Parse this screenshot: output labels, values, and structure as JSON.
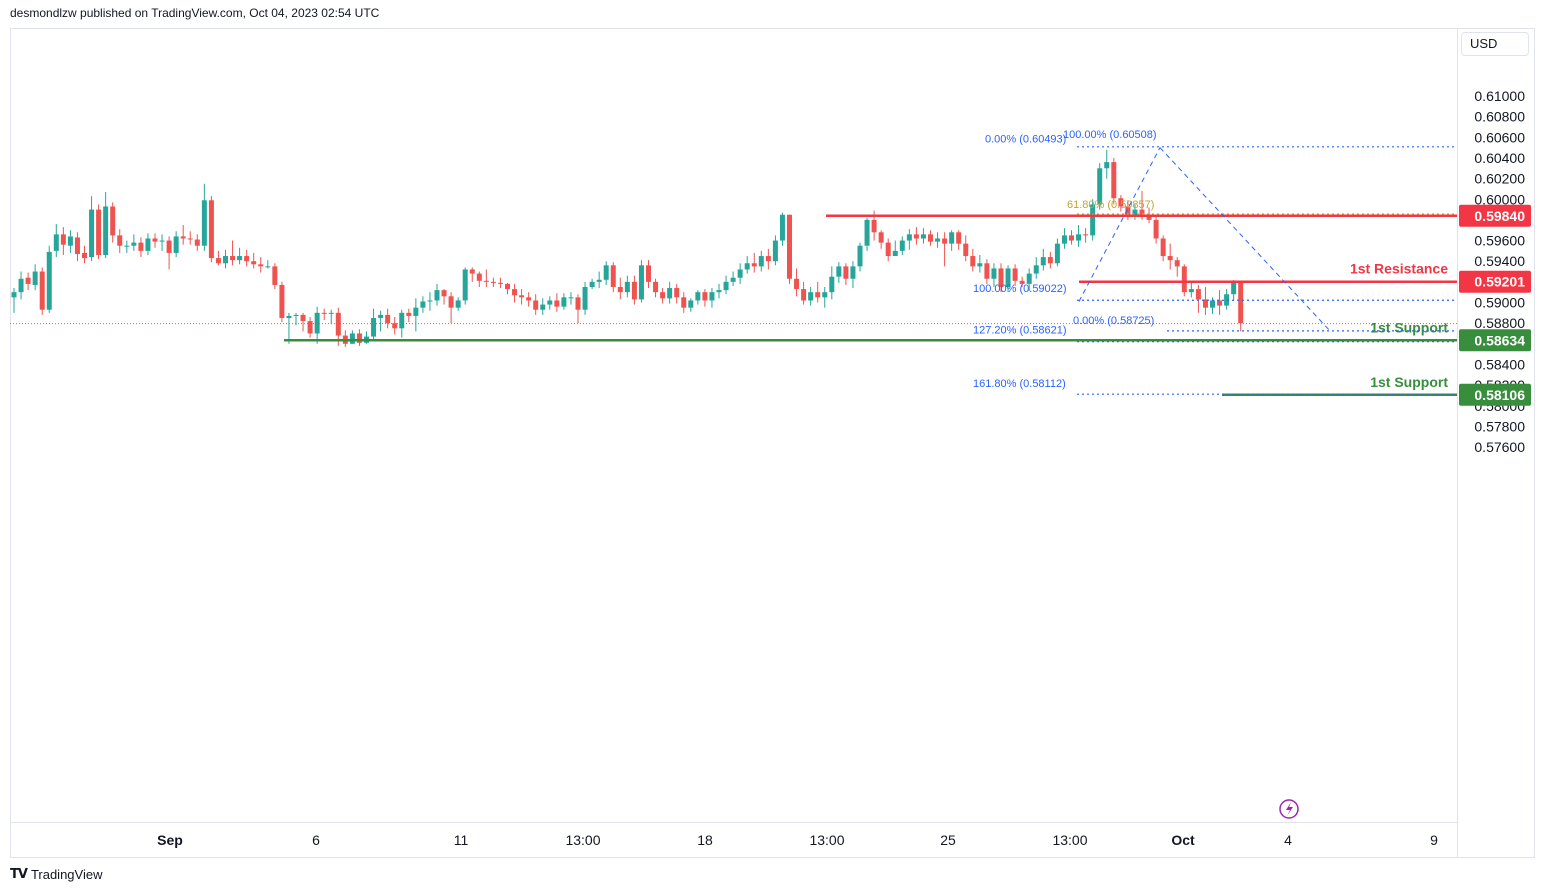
{
  "header": {
    "published": "desmondlzw published on TradingView.com, Oct 04, 2023 02:54 UTC"
  },
  "currency_button": "USD",
  "footer": {
    "brand": "TradingView"
  },
  "colors": {
    "up": "#26a69a",
    "down": "#ef5350",
    "resistance": "#f23645",
    "support": "#388e3c",
    "fib": "#2962ff",
    "fib_gold": "#c9a227"
  },
  "chart_data": {
    "type": "candlestick",
    "y_axis": {
      "ticks": [
        0.61,
        0.608,
        0.606,
        0.604,
        0.602,
        0.6,
        0.598,
        0.596,
        0.594,
        0.592,
        0.59,
        0.588,
        0.586,
        0.584,
        0.582,
        0.58,
        0.578,
        0.576
      ],
      "tick_labels": [
        "0.61000",
        "0.60800",
        "0.60600",
        "0.60400",
        "0.60200",
        "0.60000",
        "0.59800",
        "0.59600",
        "0.59400",
        "0.59200",
        "0.59000",
        "0.58800",
        "",
        "0.58400",
        "0.58200",
        "0.58000",
        "0.57800",
        "0.57600"
      ],
      "range": [
        0.5738,
        0.6128
      ]
    },
    "x_axis": {
      "tick_labels": [
        "Sep",
        "6",
        "11",
        "13:00",
        "18",
        "13:00",
        "25",
        "13:00",
        "Oct",
        "4",
        "9"
      ]
    },
    "price_labels": [
      {
        "value": "0.59840",
        "type": "resistance"
      },
      {
        "value": "0.59201",
        "type": "resistance"
      },
      {
        "value": "0.58634",
        "type": "support"
      },
      {
        "value": "0.58106",
        "type": "support"
      }
    ],
    "levels": [
      {
        "name": "resistance-1",
        "price": 0.5984,
        "label": ""
      },
      {
        "name": "resistance-2",
        "price": 0.59201,
        "label": "1st Resistance"
      },
      {
        "name": "support-1",
        "price": 0.58634,
        "label": "1st Support"
      },
      {
        "name": "support-2",
        "price": 0.58106,
        "label": "1st Support"
      }
    ],
    "fib_labels": [
      {
        "text": "0.00% (0.60493)",
        "price": 0.60493
      },
      {
        "text": "100.00% (0.60508)",
        "price": 0.60508
      },
      {
        "text": "61.80% (0.59857)",
        "price": 0.59857,
        "gold": true
      },
      {
        "text": "100.00% (0.59022)",
        "price": 0.59022
      },
      {
        "text": "0.00% (0.58725)",
        "price": 0.58725
      },
      {
        "text": "127.20% (0.58621)",
        "price": 0.58621
      },
      {
        "text": "161.80% (0.58112)",
        "price": 0.58112
      }
    ],
    "current_price": 0.58795,
    "candles": [
      [
        0.5905,
        0.591,
        0.589,
        0.5914
      ],
      [
        0.591,
        0.5923,
        0.5903,
        0.593
      ],
      [
        0.5924,
        0.5918,
        0.5912,
        0.5929
      ],
      [
        0.5917,
        0.593,
        0.5912,
        0.5937
      ],
      [
        0.593,
        0.5893,
        0.5888,
        0.5934
      ],
      [
        0.5893,
        0.5949,
        0.589,
        0.5955
      ],
      [
        0.595,
        0.5966,
        0.5944,
        0.5976
      ],
      [
        0.5966,
        0.5956,
        0.5946,
        0.5973
      ],
      [
        0.5955,
        0.5964,
        0.5948,
        0.597
      ],
      [
        0.5963,
        0.5947,
        0.594,
        0.5968
      ],
      [
        0.5948,
        0.5943,
        0.5938,
        0.5955
      ],
      [
        0.5944,
        0.599,
        0.594,
        0.6003
      ],
      [
        0.599,
        0.5946,
        0.5942,
        0.5995
      ],
      [
        0.5946,
        0.5993,
        0.5943,
        0.6007
      ],
      [
        0.5993,
        0.5965,
        0.5958,
        0.5997
      ],
      [
        0.5965,
        0.5955,
        0.5948,
        0.5971
      ],
      [
        0.5955,
        0.5955,
        0.5948,
        0.596
      ],
      [
        0.5955,
        0.5958,
        0.595,
        0.5966
      ],
      [
        0.5958,
        0.595,
        0.5944,
        0.5963
      ],
      [
        0.595,
        0.5962,
        0.5946,
        0.5967
      ],
      [
        0.5962,
        0.5959,
        0.5953,
        0.5967
      ],
      [
        0.5959,
        0.596,
        0.595,
        0.5966
      ],
      [
        0.596,
        0.5948,
        0.5932,
        0.5964
      ],
      [
        0.5948,
        0.5964,
        0.5944,
        0.5969
      ],
      [
        0.5964,
        0.5962,
        0.5956,
        0.5975
      ],
      [
        0.5962,
        0.5961,
        0.5956,
        0.5969
      ],
      [
        0.5961,
        0.5955,
        0.595,
        0.5966
      ],
      [
        0.5955,
        0.5999,
        0.595,
        0.6015
      ],
      [
        0.5999,
        0.5943,
        0.5939,
        0.6003
      ],
      [
        0.5943,
        0.5938,
        0.5936,
        0.595
      ],
      [
        0.5938,
        0.5945,
        0.5933,
        0.5951
      ],
      [
        0.5945,
        0.5941,
        0.5936,
        0.596
      ],
      [
        0.5941,
        0.5945,
        0.5937,
        0.5953
      ],
      [
        0.5945,
        0.594,
        0.5935,
        0.5951
      ],
      [
        0.594,
        0.5937,
        0.5933,
        0.5948
      ],
      [
        0.5937,
        0.5935,
        0.5929,
        0.5944
      ],
      [
        0.5935,
        0.5935,
        0.5933,
        0.5941
      ],
      [
        0.5935,
        0.5917,
        0.5913,
        0.5938
      ],
      [
        0.5917,
        0.5885,
        0.5881,
        0.592
      ],
      [
        0.5885,
        0.5887,
        0.586,
        0.589
      ],
      [
        0.5887,
        0.5888,
        0.5878,
        0.589
      ],
      [
        0.5888,
        0.5882,
        0.5872,
        0.589
      ],
      [
        0.5882,
        0.587,
        0.5866,
        0.5886
      ],
      [
        0.587,
        0.589,
        0.586,
        0.5896
      ],
      [
        0.589,
        0.5889,
        0.5883,
        0.5894
      ],
      [
        0.5889,
        0.589,
        0.5879,
        0.5893
      ],
      [
        0.589,
        0.5868,
        0.5858,
        0.5895
      ],
      [
        0.5868,
        0.586,
        0.5857,
        0.5873
      ],
      [
        0.586,
        0.587,
        0.586,
        0.5873
      ],
      [
        0.587,
        0.5861,
        0.5858,
        0.5874
      ],
      [
        0.5861,
        0.5867,
        0.586,
        0.5872
      ],
      [
        0.5867,
        0.5885,
        0.5863,
        0.5894
      ],
      [
        0.5885,
        0.5888,
        0.5872,
        0.5892
      ],
      [
        0.5888,
        0.588,
        0.5875,
        0.5894
      ],
      [
        0.588,
        0.5875,
        0.5869,
        0.5886
      ],
      [
        0.5875,
        0.589,
        0.5866,
        0.5893
      ],
      [
        0.589,
        0.5887,
        0.5881,
        0.5894
      ],
      [
        0.5887,
        0.5895,
        0.5872,
        0.5904
      ],
      [
        0.5895,
        0.5901,
        0.589,
        0.5906
      ],
      [
        0.5901,
        0.5902,
        0.5892,
        0.591
      ],
      [
        0.5902,
        0.5912,
        0.5897,
        0.5918
      ],
      [
        0.5912,
        0.5906,
        0.5898,
        0.5913
      ],
      [
        0.5906,
        0.5895,
        0.588,
        0.591
      ],
      [
        0.5895,
        0.5902,
        0.5892,
        0.5905
      ],
      [
        0.5902,
        0.5932,
        0.5898,
        0.5934
      ],
      [
        0.5932,
        0.5928,
        0.592,
        0.5934
      ],
      [
        0.5928,
        0.5921,
        0.5915,
        0.593
      ],
      [
        0.5921,
        0.592,
        0.5915,
        0.5932
      ],
      [
        0.592,
        0.5919,
        0.5915,
        0.5924
      ],
      [
        0.5919,
        0.5918,
        0.5914,
        0.5924
      ],
      [
        0.5918,
        0.5913,
        0.5908,
        0.5919
      ],
      [
        0.5913,
        0.5907,
        0.59,
        0.5918
      ],
      [
        0.5907,
        0.5905,
        0.5898,
        0.5913
      ],
      [
        0.5905,
        0.5902,
        0.5896,
        0.591
      ],
      [
        0.5902,
        0.5893,
        0.5888,
        0.5908
      ],
      [
        0.5893,
        0.5898,
        0.5888,
        0.5904
      ],
      [
        0.5898,
        0.5902,
        0.5893,
        0.5906
      ],
      [
        0.5902,
        0.5896,
        0.5891,
        0.5909
      ],
      [
        0.5896,
        0.5905,
        0.5893,
        0.5909
      ],
      [
        0.5905,
        0.5905,
        0.5898,
        0.591
      ],
      [
        0.5905,
        0.5893,
        0.588,
        0.5908
      ],
      [
        0.5893,
        0.5915,
        0.5888,
        0.592
      ],
      [
        0.5915,
        0.592,
        0.5913,
        0.5923
      ],
      [
        0.592,
        0.5922,
        0.5914,
        0.593
      ],
      [
        0.5922,
        0.5936,
        0.5917,
        0.594
      ],
      [
        0.5936,
        0.5915,
        0.591,
        0.5939
      ],
      [
        0.5915,
        0.591,
        0.5903,
        0.5924
      ],
      [
        0.591,
        0.592,
        0.5905,
        0.5926
      ],
      [
        0.592,
        0.5903,
        0.5898,
        0.5926
      ],
      [
        0.5903,
        0.5936,
        0.59,
        0.5941
      ],
      [
        0.5936,
        0.592,
        0.5914,
        0.5941
      ],
      [
        0.592,
        0.591,
        0.5905,
        0.5923
      ],
      [
        0.591,
        0.5904,
        0.5899,
        0.5914
      ],
      [
        0.5904,
        0.5914,
        0.5899,
        0.592
      ],
      [
        0.5914,
        0.5905,
        0.5899,
        0.5918
      ],
      [
        0.5905,
        0.5895,
        0.589,
        0.591
      ],
      [
        0.5895,
        0.5902,
        0.5891,
        0.5904
      ],
      [
        0.5902,
        0.591,
        0.5898,
        0.5912
      ],
      [
        0.591,
        0.5902,
        0.5896,
        0.5913
      ],
      [
        0.5902,
        0.591,
        0.5895,
        0.5914
      ],
      [
        0.591,
        0.5912,
        0.5904,
        0.5918
      ],
      [
        0.5912,
        0.592,
        0.5908,
        0.5926
      ],
      [
        0.592,
        0.5924,
        0.5916,
        0.593
      ],
      [
        0.5924,
        0.5932,
        0.5918,
        0.5938
      ],
      [
        0.5932,
        0.5938,
        0.5928,
        0.5945
      ],
      [
        0.5938,
        0.5935,
        0.5929,
        0.5948
      ],
      [
        0.5935,
        0.5945,
        0.593,
        0.595
      ],
      [
        0.5945,
        0.594,
        0.5932,
        0.5952
      ],
      [
        0.594,
        0.596,
        0.5936,
        0.5965
      ],
      [
        0.596,
        0.5985,
        0.5955,
        0.5987
      ],
      [
        0.5985,
        0.5923,
        0.5918,
        0.5985
      ],
      [
        0.5923,
        0.5913,
        0.5906,
        0.5933
      ],
      [
        0.5913,
        0.5902,
        0.5898,
        0.592
      ],
      [
        0.5902,
        0.591,
        0.5897,
        0.5915
      ],
      [
        0.591,
        0.5905,
        0.59,
        0.592
      ],
      [
        0.5905,
        0.591,
        0.5895,
        0.5915
      ],
      [
        0.591,
        0.5925,
        0.5903,
        0.5935
      ],
      [
        0.5925,
        0.5935,
        0.5919,
        0.5939
      ],
      [
        0.5935,
        0.5923,
        0.5917,
        0.5938
      ],
      [
        0.5923,
        0.5935,
        0.5914,
        0.594
      ],
      [
        0.5935,
        0.5955,
        0.593,
        0.5958
      ],
      [
        0.5955,
        0.598,
        0.595,
        0.5982
      ],
      [
        0.598,
        0.5968,
        0.596,
        0.5989
      ],
      [
        0.5968,
        0.5958,
        0.5952,
        0.597
      ],
      [
        0.5958,
        0.5945,
        0.594,
        0.5962
      ],
      [
        0.5945,
        0.595,
        0.5945,
        0.596
      ],
      [
        0.595,
        0.596,
        0.5946,
        0.5964
      ],
      [
        0.596,
        0.5966,
        0.5951,
        0.5971
      ],
      [
        0.5966,
        0.5962,
        0.5956,
        0.5973
      ],
      [
        0.5962,
        0.5966,
        0.5957,
        0.5972
      ],
      [
        0.5966,
        0.5959,
        0.5955,
        0.597
      ],
      [
        0.5959,
        0.5962,
        0.5953,
        0.5968
      ],
      [
        0.5962,
        0.5957,
        0.5935,
        0.5968
      ],
      [
        0.5957,
        0.5968,
        0.595,
        0.597
      ],
      [
        0.5968,
        0.5957,
        0.5951,
        0.597
      ],
      [
        0.5957,
        0.5945,
        0.594,
        0.5965
      ],
      [
        0.5945,
        0.5935,
        0.593,
        0.5952
      ],
      [
        0.5935,
        0.5938,
        0.5929,
        0.5946
      ],
      [
        0.5938,
        0.5923,
        0.5918,
        0.5942
      ],
      [
        0.5923,
        0.5933,
        0.5915,
        0.5938
      ],
      [
        0.5933,
        0.5915,
        0.591,
        0.5938
      ],
      [
        0.5915,
        0.5933,
        0.591,
        0.5936
      ],
      [
        0.5933,
        0.5921,
        0.5916,
        0.5937
      ],
      [
        0.5921,
        0.5918,
        0.5915,
        0.5925
      ],
      [
        0.5918,
        0.5928,
        0.5911,
        0.5933
      ],
      [
        0.5928,
        0.5936,
        0.5923,
        0.5944
      ],
      [
        0.5936,
        0.5944,
        0.5931,
        0.5952
      ],
      [
        0.5944,
        0.5938,
        0.5933,
        0.5949
      ],
      [
        0.5938,
        0.5957,
        0.5935,
        0.5962
      ],
      [
        0.5957,
        0.5965,
        0.5952,
        0.5972
      ],
      [
        0.5965,
        0.596,
        0.5956,
        0.597
      ],
      [
        0.596,
        0.5966,
        0.5954,
        0.5975
      ],
      [
        0.5966,
        0.5965,
        0.5958,
        0.5972
      ],
      [
        0.5965,
        0.5995,
        0.596,
        0.6
      ],
      [
        0.5995,
        0.603,
        0.599,
        0.6035
      ],
      [
        0.603,
        0.6036,
        0.602,
        0.6048
      ],
      [
        0.6036,
        0.6001,
        0.5995,
        0.604
      ],
      [
        0.6001,
        0.5993,
        0.5988,
        0.6004
      ],
      [
        0.5993,
        0.5985,
        0.598,
        0.5999
      ],
      [
        0.5985,
        0.599,
        0.598,
        0.5995
      ],
      [
        0.599,
        0.5985,
        0.598,
        0.6008
      ],
      [
        0.5985,
        0.598,
        0.5977,
        0.5992
      ],
      [
        0.598,
        0.5962,
        0.5957,
        0.5983
      ],
      [
        0.5962,
        0.5945,
        0.594,
        0.5965
      ],
      [
        0.5945,
        0.5941,
        0.5932,
        0.5957
      ],
      [
        0.5941,
        0.5935,
        0.5925,
        0.5944
      ],
      [
        0.5935,
        0.591,
        0.5906,
        0.5937
      ],
      [
        0.591,
        0.5913,
        0.5905,
        0.592
      ],
      [
        0.5913,
        0.5903,
        0.589,
        0.5917
      ],
      [
        0.5903,
        0.5895,
        0.5888,
        0.5915
      ],
      [
        0.5895,
        0.5902,
        0.5889,
        0.5905
      ],
      [
        0.5902,
        0.5897,
        0.5888,
        0.5912
      ],
      [
        0.5897,
        0.5908,
        0.5893,
        0.5913
      ],
      [
        0.5908,
        0.592,
        0.5902,
        0.5922
      ],
      [
        0.592,
        0.588,
        0.5872,
        0.5921
      ]
    ]
  }
}
